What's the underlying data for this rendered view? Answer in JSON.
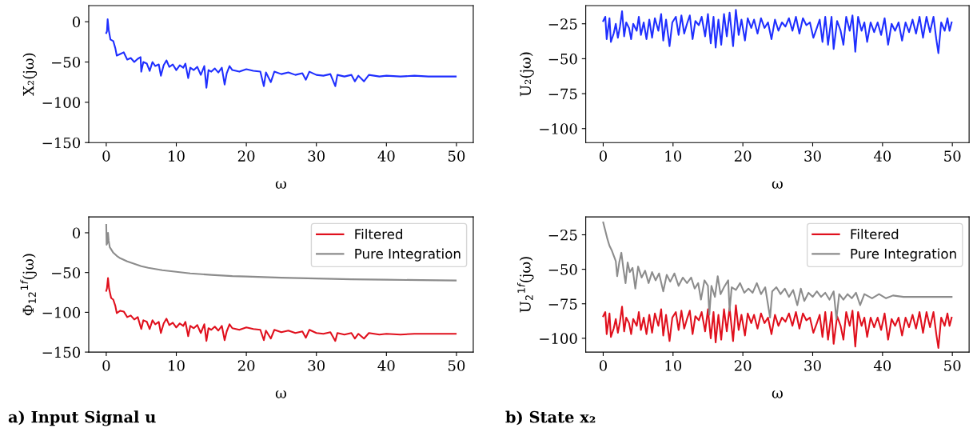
{
  "chart_data": [
    {
      "type": "line",
      "xlabel": "ω",
      "ylabel": "X₂(jω)",
      "xlim": [
        -2.5,
        52.4
      ],
      "ylim": [
        -150,
        20
      ],
      "xticks": [
        0,
        10,
        20,
        30,
        40,
        50
      ],
      "yticks": [
        -150,
        -100,
        -50,
        0
      ],
      "grid": false,
      "marker": "none",
      "line_style": "solid",
      "series": [
        {
          "color": "#1f2fff",
          "x": [
            0,
            0.1,
            0.2,
            0.35,
            0.6,
            1,
            1.3,
            1.5,
            2,
            2.5,
            3,
            3.5,
            4,
            4.5,
            4.9,
            5,
            5.3,
            5.8,
            6.2,
            6.6,
            7,
            7.5,
            7.8,
            8.2,
            8.6,
            9,
            9.5,
            10,
            10.5,
            11,
            11.3,
            11.7,
            12,
            12.5,
            13,
            13.5,
            14,
            14.3,
            14.6,
            15,
            15.5,
            16,
            16.5,
            16.9,
            17.2,
            17.6,
            18,
            19,
            20,
            21,
            22,
            22.5,
            22.8,
            23.5,
            24,
            25,
            26,
            27,
            28,
            28.5,
            29,
            30,
            31,
            32,
            32.7,
            33,
            34,
            35,
            35.5,
            36,
            36.8,
            37.5,
            39,
            40,
            42,
            44,
            46,
            48,
            49.9
          ],
          "values": [
            -14,
            -12,
            3,
            -10,
            -22,
            -24,
            -33,
            -42,
            -40,
            -38,
            -47,
            -45,
            -50,
            -46,
            -44,
            -62,
            -50,
            -52,
            -61,
            -50,
            -55,
            -53,
            -67,
            -54,
            -48,
            -56,
            -53,
            -60,
            -54,
            -57,
            -52,
            -70,
            -57,
            -60,
            -56,
            -66,
            -55,
            -82,
            -60,
            -62,
            -58,
            -63,
            -57,
            -78,
            -64,
            -55,
            -60,
            -62,
            -59,
            -61,
            -62,
            -80,
            -63,
            -75,
            -62,
            -65,
            -63,
            -66,
            -64,
            -72,
            -62,
            -66,
            -67,
            -65,
            -80,
            -66,
            -68,
            -66,
            -74,
            -67,
            -74,
            -66,
            -68,
            -67,
            -68,
            -67,
            -68,
            -68,
            -68
          ]
        }
      ]
    },
    {
      "type": "line",
      "xlabel": "ω",
      "ylabel": "U₂(jω)",
      "xlim": [
        -2.5,
        52.4
      ],
      "ylim": [
        -110,
        -12
      ],
      "xticks": [
        0,
        10,
        20,
        30,
        40,
        50
      ],
      "yticks": [
        -100,
        -75,
        -50,
        -25
      ],
      "grid": false,
      "marker": "none",
      "line_style": "solid",
      "series": [
        {
          "color": "#1f2fff",
          "x": [
            0,
            0.3,
            0.5,
            0.9,
            1.1,
            1.5,
            1.8,
            2.1,
            2.4,
            2.7,
            3.0,
            3.3,
            3.7,
            4.0,
            4.3,
            4.8,
            5.1,
            5.4,
            5.8,
            6.2,
            6.6,
            7.0,
            7.4,
            7.9,
            8.3,
            8.6,
            9.0,
            9.5,
            9.9,
            10.4,
            10.8,
            11.2,
            11.6,
            12.0,
            12.4,
            12.8,
            13.2,
            13.7,
            14.1,
            14.6,
            15.0,
            15.4,
            15.8,
            16.1,
            16.5,
            16.9,
            17.3,
            17.7,
            18.1,
            18.6,
            19.0,
            19.4,
            19.8,
            20.3,
            20.7,
            21.2,
            21.6,
            22.1,
            22.6,
            23.1,
            23.6,
            24.1,
            24.6,
            25.1,
            25.6,
            26.1,
            26.6,
            27.1,
            27.6,
            28.1,
            28.6,
            29.1,
            29.6,
            30.1,
            30.6,
            31.0,
            31.4,
            31.8,
            32.2,
            32.7,
            33.0,
            33.5,
            34.0,
            34.4,
            34.8,
            35.3,
            35.7,
            36.1,
            36.5,
            37.0,
            37.4,
            37.8,
            38.3,
            38.8,
            39.3,
            39.8,
            40.3,
            40.8,
            41.3,
            41.8,
            42.3,
            42.8,
            43.3,
            43.8,
            44.3,
            44.8,
            45.3,
            45.8,
            46.3,
            46.8,
            47.3,
            47.7,
            48.0,
            48.4,
            48.9,
            49.3,
            49.6,
            49.9
          ],
          "values": [
            -23,
            -20,
            -36,
            -21,
            -38,
            -32,
            -25,
            -35,
            -27,
            -16,
            -34,
            -24,
            -28,
            -36,
            -25,
            -30,
            -20,
            -33,
            -24,
            -36,
            -22,
            -35,
            -21,
            -30,
            -18,
            -37,
            -22,
            -41,
            -24,
            -20,
            -33,
            -19,
            -32,
            -25,
            -19,
            -36,
            -23,
            -26,
            -20,
            -34,
            -18,
            -39,
            -20,
            -42,
            -22,
            -40,
            -18,
            -34,
            -17,
            -41,
            -15,
            -33,
            -22,
            -37,
            -21,
            -28,
            -22,
            -32,
            -21,
            -28,
            -24,
            -36,
            -22,
            -30,
            -24,
            -27,
            -21,
            -30,
            -20,
            -32,
            -21,
            -26,
            -24,
            -35,
            -28,
            -22,
            -38,
            -20,
            -40,
            -20,
            -43,
            -23,
            -30,
            -40,
            -20,
            -30,
            -19,
            -45,
            -20,
            -30,
            -24,
            -38,
            -24,
            -31,
            -24,
            -33,
            -21,
            -40,
            -25,
            -30,
            -24,
            -37,
            -24,
            -31,
            -22,
            -32,
            -20,
            -35,
            -20,
            -31,
            -20,
            -36,
            -46,
            -24,
            -30,
            -21,
            -30,
            -24
          ]
        }
      ]
    },
    {
      "type": "line",
      "xlabel": "ω",
      "ylabel": "Φ$_{12}$$^{1f}$(jω)",
      "xlim": [
        -2.5,
        52.4
      ],
      "ylim": [
        -150,
        20
      ],
      "xticks": [
        0,
        10,
        20,
        30,
        40,
        50
      ],
      "yticks": [
        -150,
        -100,
        -50,
        0
      ],
      "grid": false,
      "marker": "none",
      "line_style": "solid",
      "legend": "top right",
      "annotations": [
        "a) Input Signal u"
      ],
      "series": [
        {
          "name": "Filtered",
          "color": "#e0101d",
          "x": [
            0,
            0.1,
            0.25,
            0.4,
            0.7,
            1,
            1.3,
            1.5,
            2,
            2.5,
            3,
            3.5,
            4,
            4.5,
            5,
            5.3,
            5.8,
            6.2,
            6.6,
            7,
            7.5,
            7.8,
            8.2,
            8.6,
            9,
            9.5,
            10,
            10.5,
            11,
            11.3,
            11.7,
            12,
            12.5,
            13,
            13.5,
            14,
            14.3,
            14.6,
            15,
            15.5,
            16,
            16.5,
            16.9,
            17.2,
            17.6,
            18,
            19,
            20,
            21,
            22,
            22.5,
            22.8,
            23.5,
            24,
            25,
            26,
            27,
            28,
            28.5,
            29,
            30,
            31,
            32,
            32.7,
            33,
            34,
            35,
            35.5,
            36,
            36.8,
            37.5,
            39,
            40,
            42,
            44,
            46,
            48,
            49.9
          ],
          "values": [
            -73,
            -70,
            -57,
            -70,
            -82,
            -84,
            -92,
            -101,
            -98,
            -99,
            -106,
            -104,
            -109,
            -106,
            -121,
            -110,
            -112,
            -121,
            -110,
            -115,
            -112,
            -126,
            -114,
            -108,
            -116,
            -113,
            -119,
            -114,
            -117,
            -112,
            -130,
            -117,
            -120,
            -116,
            -126,
            -115,
            -136,
            -120,
            -122,
            -118,
            -123,
            -117,
            -135,
            -124,
            -115,
            -120,
            -122,
            -119,
            -121,
            -122,
            -135,
            -123,
            -133,
            -122,
            -125,
            -123,
            -126,
            -124,
            -132,
            -122,
            -126,
            -127,
            -125,
            -136,
            -126,
            -128,
            -126,
            -133,
            -127,
            -133,
            -126,
            -128,
            -127,
            -128,
            -127,
            -127,
            -127,
            -127
          ]
        },
        {
          "name": "Pure Integration",
          "color": "#8c8c8c",
          "x": [
            0,
            0.05,
            0.2,
            0.25,
            0.35,
            0.5,
            1,
            1.5,
            2,
            3,
            4,
            5,
            6,
            8,
            10,
            12,
            15,
            18,
            20,
            25,
            30,
            35,
            40,
            45,
            49.9
          ],
          "values": [
            10,
            -15,
            -12,
            0,
            -10,
            -18,
            -25,
            -29,
            -32,
            -36,
            -39,
            -42,
            -44,
            -47,
            -49,
            -51,
            -53,
            -54.5,
            -55,
            -56.5,
            -57.5,
            -58.5,
            -59,
            -59.5,
            -60
          ]
        }
      ]
    },
    {
      "type": "line",
      "xlabel": "ω",
      "ylabel": "U$_{2}$$^{1f}$(jω)",
      "xlim": [
        -2.5,
        52.4
      ],
      "ylim": [
        -110,
        -12
      ],
      "xticks": [
        0,
        10,
        20,
        30,
        40,
        50
      ],
      "yticks": [
        -100,
        -75,
        -50,
        -25
      ],
      "grid": false,
      "marker": "none",
      "line_style": "solid",
      "legend": "top right",
      "annotations": [
        "b) State x₂"
      ],
      "series": [
        {
          "name": "Filtered",
          "color": "#e0101d",
          "x": [
            0,
            0.3,
            0.5,
            0.9,
            1.1,
            1.5,
            1.8,
            2.1,
            2.4,
            2.7,
            3.0,
            3.3,
            3.7,
            4.0,
            4.3,
            4.8,
            5.1,
            5.4,
            5.8,
            6.2,
            6.6,
            7.0,
            7.4,
            7.9,
            8.3,
            8.6,
            9.0,
            9.5,
            9.9,
            10.4,
            10.8,
            11.2,
            11.6,
            12.0,
            12.4,
            12.8,
            13.2,
            13.7,
            14.1,
            14.6,
            15.0,
            15.4,
            15.8,
            16.1,
            16.5,
            16.9,
            17.3,
            17.7,
            18.1,
            18.6,
            19.0,
            19.4,
            19.8,
            20.3,
            20.7,
            21.2,
            21.6,
            22.1,
            22.6,
            23.1,
            23.6,
            24.1,
            24.6,
            25.1,
            25.6,
            26.1,
            26.6,
            27.1,
            27.6,
            28.1,
            28.6,
            29.1,
            29.6,
            30.1,
            30.6,
            31.0,
            31.4,
            31.8,
            32.2,
            32.7,
            33.0,
            33.5,
            34.0,
            34.4,
            34.8,
            35.3,
            35.7,
            36.1,
            36.5,
            37.0,
            37.4,
            37.8,
            38.3,
            38.8,
            39.3,
            39.8,
            40.3,
            40.8,
            41.3,
            41.8,
            42.3,
            42.8,
            43.3,
            43.8,
            44.3,
            44.8,
            45.3,
            45.8,
            46.3,
            46.8,
            47.3,
            47.7,
            48.0,
            48.4,
            48.9,
            49.3,
            49.6,
            49.9
          ],
          "values": [
            -84,
            -81,
            -97,
            -82,
            -99,
            -93,
            -86,
            -96,
            -88,
            -77,
            -95,
            -85,
            -89,
            -97,
            -86,
            -91,
            -81,
            -94,
            -85,
            -97,
            -83,
            -96,
            -82,
            -91,
            -79,
            -98,
            -83,
            -102,
            -85,
            -81,
            -94,
            -80,
            -93,
            -86,
            -80,
            -97,
            -84,
            -87,
            -81,
            -95,
            -79,
            -100,
            -81,
            -103,
            -83,
            -101,
            -79,
            -95,
            -78,
            -102,
            -76,
            -94,
            -83,
            -98,
            -82,
            -89,
            -83,
            -93,
            -82,
            -89,
            -85,
            -97,
            -83,
            -91,
            -85,
            -88,
            -82,
            -91,
            -81,
            -93,
            -82,
            -87,
            -85,
            -96,
            -89,
            -83,
            -99,
            -81,
            -101,
            -81,
            -104,
            -84,
            -91,
            -101,
            -81,
            -91,
            -80,
            -106,
            -81,
            -91,
            -85,
            -99,
            -85,
            -92,
            -85,
            -94,
            -82,
            -101,
            -86,
            -91,
            -85,
            -98,
            -85,
            -92,
            -83,
            -93,
            -81,
            -96,
            -81,
            -92,
            -81,
            -97,
            -107,
            -85,
            -91,
            -82,
            -91,
            -85
          ]
        },
        {
          "name": "Pure Integration",
          "color": "#8c8c8c",
          "x": [
            0,
            0.3,
            0.6,
            0.9,
            1.2,
            1.5,
            1.8,
            2.0,
            2.3,
            2.6,
            2.9,
            3.2,
            3.5,
            3.8,
            4.2,
            4.6,
            5.0,
            5.5,
            6.0,
            6.5,
            7.0,
            7.5,
            8.0,
            8.6,
            9.1,
            9.6,
            10.2,
            10.8,
            11.4,
            12.0,
            12.6,
            13.1,
            13.6,
            14.0,
            14.5,
            15.0,
            15.2,
            15.5,
            16.0,
            16.4,
            16.8,
            17.3,
            17.9,
            18.1,
            18.4,
            19.0,
            19.6,
            20.2,
            20.8,
            21.4,
            22.0,
            22.6,
            23.2,
            23.9,
            24.2,
            24.8,
            25.4,
            26.0,
            26.6,
            27.2,
            27.8,
            28.3,
            28.8,
            29.4,
            30.0,
            30.6,
            31.2,
            31.8,
            32.4,
            33.0,
            33.4,
            33.8,
            34.4,
            35.0,
            35.6,
            36.2,
            36.8,
            37.4,
            38.5,
            39.5,
            40.5,
            41.5,
            43,
            44.5,
            46,
            48,
            49.9
          ],
          "values": [
            -16,
            -22,
            -28,
            -33,
            -36,
            -40,
            -44,
            -55,
            -45,
            -38,
            -50,
            -60,
            -45,
            -52,
            -49,
            -64,
            -48,
            -56,
            -51,
            -60,
            -52,
            -58,
            -53,
            -66,
            -54,
            -59,
            -53,
            -62,
            -56,
            -60,
            -56,
            -64,
            -60,
            -72,
            -58,
            -62,
            -83,
            -62,
            -70,
            -55,
            -68,
            -63,
            -58,
            -80,
            -63,
            -65,
            -60,
            -67,
            -64,
            -67,
            -60,
            -68,
            -63,
            -85,
            -66,
            -63,
            -68,
            -64,
            -70,
            -65,
            -76,
            -64,
            -73,
            -67,
            -70,
            -66,
            -70,
            -67,
            -72,
            -66,
            -86,
            -68,
            -72,
            -68,
            -71,
            -67,
            -76,
            -68,
            -71,
            -68,
            -71,
            -69,
            -70,
            -70,
            -70,
            -70,
            -70
          ]
        }
      ]
    }
  ]
}
